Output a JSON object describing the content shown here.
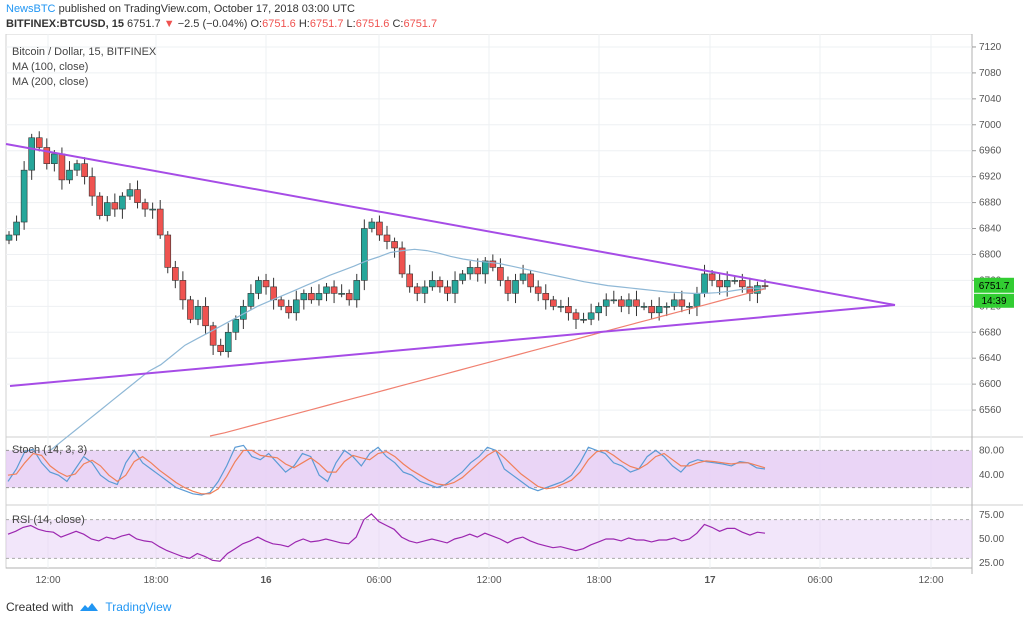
{
  "header": {
    "brand": "NewsBTC",
    "published": "published on TradingView.com, October 17, 2018 03:00 UTC",
    "symbol": "BITFINEX:BTCUSD, 15",
    "last": "6751.7",
    "change": "−2.5 (−0.04%)",
    "o_label": "O:",
    "o": "6751.6",
    "h_label": "H:",
    "h": "6751.7",
    "l_label": "L:",
    "l": "6751.6",
    "c_label": "C:",
    "c": "6751.7"
  },
  "legend": {
    "title": "Bitcoin / Dollar, 15, BITFINEX",
    "ma100": "MA (100, close)",
    "ma200": "MA (200, close)"
  },
  "footer": {
    "created_with": "Created with",
    "brand": "TradingView"
  },
  "colors": {
    "up": "#26a69a",
    "down": "#ef5350",
    "ma100": "#8fb8d6",
    "ma200": "#f08070",
    "trendline": "#a64ce6",
    "stoch_k": "#5b9bd5",
    "stoch_d": "#f0805a",
    "rsi": "#9c27b0",
    "band": "#e6cef5",
    "label_green": "#32cd32"
  },
  "chart_data": [
    {
      "type": "candlestick",
      "title": "Bitcoin / Dollar, 15, BITFINEX",
      "x_ticks": [
        "12:00",
        "18:00",
        "16",
        "06:00",
        "12:00",
        "18:00",
        "17",
        "06:00",
        "12:00"
      ],
      "y_ticks": [
        6560,
        6600,
        6640,
        6680,
        6720,
        6760,
        6800,
        6840,
        6880,
        6920,
        6960,
        7000,
        7040,
        7080,
        7120
      ],
      "ylim": [
        6520,
        7140
      ],
      "last_price_label": "6751.7",
      "countdown_label": "14:39",
      "closes": [
        6830,
        6850,
        6930,
        6980,
        6965,
        6940,
        6955,
        6915,
        6930,
        6940,
        6920,
        6890,
        6860,
        6880,
        6870,
        6890,
        6900,
        6880,
        6870,
        6870,
        6830,
        6780,
        6760,
        6730,
        6700,
        6720,
        6690,
        6660,
        6650,
        6680,
        6700,
        6720,
        6740,
        6760,
        6750,
        6730,
        6720,
        6710,
        6730,
        6740,
        6730,
        6740,
        6750,
        6740,
        6740,
        6730,
        6760,
        6840,
        6850,
        6830,
        6820,
        6810,
        6770,
        6750,
        6740,
        6750,
        6760,
        6750,
        6740,
        6760,
        6770,
        6780,
        6770,
        6790,
        6780,
        6760,
        6740,
        6760,
        6770,
        6750,
        6740,
        6730,
        6720,
        6720,
        6710,
        6700,
        6700,
        6710,
        6720,
        6730,
        6730,
        6720,
        6730,
        6720,
        6720,
        6710,
        6720,
        6720,
        6730,
        6720,
        6720,
        6740,
        6770,
        6760,
        6750,
        6760,
        6760,
        6750,
        6740,
        6752,
        6751.7
      ],
      "series": [
        {
          "name": "MA (100, close)",
          "values": [
            6490,
            6500,
            6515,
            6530,
            6545,
            6560,
            6575,
            6590,
            6605,
            6620,
            6630,
            6645,
            6660,
            6670,
            6680,
            6690,
            6700,
            6710,
            6720,
            6728,
            6736,
            6744,
            6752,
            6760,
            6768,
            6775,
            6782,
            6790,
            6796,
            6803,
            6806,
            6808,
            6806,
            6802,
            6797,
            6793,
            6790,
            6788,
            6786,
            6782,
            6778,
            6774,
            6770,
            6766,
            6762,
            6758,
            6755,
            6752,
            6750,
            6748,
            6746,
            6744,
            6742,
            6741,
            6740,
            6740,
            6741,
            6743,
            6746,
            6748,
            6748
          ]
        },
        {
          "name": "MA (200, close)",
          "values": [
            6520,
            6525,
            6531,
            6537,
            6543,
            6549,
            6555,
            6561,
            6567,
            6573,
            6579,
            6585,
            6591,
            6597,
            6603,
            6609,
            6615,
            6621,
            6627,
            6633,
            6639,
            6645,
            6651,
            6657,
            6663,
            6669,
            6675,
            6681,
            6687,
            6693,
            6699,
            6705,
            6711,
            6717,
            6723,
            6729,
            6735,
            6741,
            6747
          ]
        }
      ]
    },
    {
      "type": "line",
      "title": "Stoch (14, 3, 3)",
      "y_ticks": [
        40,
        80
      ],
      "band": [
        20,
        80
      ],
      "ylim": [
        0,
        100
      ],
      "series": [
        {
          "name": "%K",
          "values": [
            30,
            50,
            78,
            82,
            60,
            45,
            40,
            30,
            50,
            70,
            60,
            40,
            30,
            25,
            60,
            80,
            60,
            50,
            40,
            30,
            20,
            15,
            10,
            8,
            12,
            30,
            55,
            85,
            88,
            70,
            65,
            75,
            60,
            45,
            55,
            75,
            70,
            40,
            30,
            60,
            80,
            70,
            55,
            75,
            85,
            70,
            60,
            45,
            40,
            30,
            25,
            20,
            25,
            35,
            45,
            60,
            70,
            85,
            80,
            50,
            40,
            30,
            20,
            15,
            20,
            25,
            30,
            40,
            60,
            85,
            80,
            75,
            60,
            55,
            45,
            50,
            70,
            80,
            70,
            55,
            45,
            60,
            65,
            62,
            60,
            58,
            55,
            62,
            60,
            52,
            50
          ]
        },
        {
          "name": "%D",
          "values": [
            40,
            42,
            60,
            75,
            72,
            55,
            45,
            38,
            42,
            58,
            64,
            55,
            40,
            30,
            40,
            62,
            70,
            60,
            48,
            38,
            28,
            20,
            14,
            10,
            10,
            18,
            38,
            62,
            80,
            80,
            72,
            70,
            68,
            58,
            52,
            60,
            68,
            58,
            45,
            45,
            62,
            72,
            68,
            65,
            75,
            78,
            70,
            58,
            48,
            40,
            32,
            26,
            24,
            28,
            36,
            48,
            60,
            72,
            80,
            68,
            55,
            42,
            32,
            22,
            18,
            20,
            26,
            32,
            45,
            65,
            78,
            80,
            72,
            62,
            54,
            50,
            58,
            70,
            75,
            65,
            55,
            55,
            60,
            63,
            62,
            60,
            58,
            60,
            60,
            56,
            52
          ]
        }
      ]
    },
    {
      "type": "line",
      "title": "RSI (14, close)",
      "y_ticks": [
        25,
        50,
        75
      ],
      "band": [
        30,
        70
      ],
      "ylim": [
        20,
        80
      ],
      "series": [
        {
          "name": "RSI",
          "values": [
            55,
            58,
            62,
            64,
            60,
            58,
            57,
            52,
            55,
            58,
            55,
            50,
            48,
            52,
            50,
            53,
            55,
            50,
            48,
            47,
            42,
            38,
            35,
            32,
            30,
            35,
            32,
            28,
            27,
            35,
            40,
            45,
            48,
            52,
            48,
            45,
            44,
            42,
            47,
            50,
            47,
            48,
            50,
            48,
            46,
            45,
            52,
            70,
            76,
            68,
            64,
            60,
            52,
            48,
            46,
            48,
            50,
            48,
            46,
            50,
            52,
            55,
            52,
            56,
            53,
            50,
            46,
            50,
            52,
            48,
            45,
            43,
            41,
            42,
            40,
            38,
            40,
            44,
            47,
            50,
            50,
            48,
            51,
            49,
            49,
            47,
            49,
            49,
            51,
            48,
            50,
            56,
            65,
            62,
            58,
            61,
            61,
            57,
            54,
            57,
            56
          ]
        }
      ]
    }
  ]
}
